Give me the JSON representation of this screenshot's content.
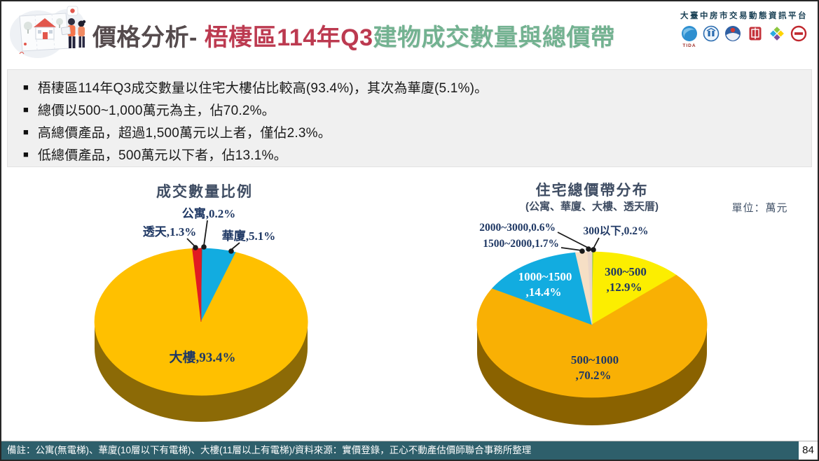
{
  "header": {
    "title_prefix": "價格分析- ",
    "title_region": "梧棲區114年Q3",
    "title_suffix": "建物成交數量與總價帶",
    "platform_name": "大臺中房市交易動態資訊平台",
    "tida_caption": "TIDA"
  },
  "bullets": [
    "梧棲區114年Q3成交數量以住宅大樓佔比較高(93.4%)，其次為華廈(5.1%)。",
    "總價以500~1,000萬元為主，佔70.2%。",
    "高總價產品，超過1,500萬元以上者，僅佔2.3%。",
    "低總價產品，500萬元以下者，佔13.1%。"
  ],
  "unit_label": "單位：萬元",
  "chart_data": [
    {
      "type": "pie",
      "title": "成交數量比例",
      "legend_position": "none",
      "style": "3d-pie",
      "start_angle_deg": 0,
      "direction": "clockwise",
      "side_color": "#8C6A06",
      "slices": [
        {
          "label": "公寓",
          "value": 0.2,
          "color": "#9C3234"
        },
        {
          "label": "華廈",
          "value": 5.1,
          "color": "#12ACE0"
        },
        {
          "label": "大樓",
          "value": 93.4,
          "color": "#FFC000"
        },
        {
          "label": "透天",
          "value": 1.3,
          "color": "#E11B22"
        }
      ]
    },
    {
      "type": "pie",
      "title": "住宅總價帶分布",
      "subtitle": "(公寓、華廈、大樓、透天厝)",
      "unit": "單位：萬元",
      "legend_position": "none",
      "style": "3d-pie",
      "start_angle_deg": 0,
      "direction": "clockwise",
      "side_color": "#8A6200",
      "slices": [
        {
          "label": "300以下",
          "value": 0.2,
          "color": "#8CC63F"
        },
        {
          "label": "300~500",
          "value": 12.9,
          "color": "#FCEE00"
        },
        {
          "label": "500~1000",
          "value": 70.2,
          "color": "#F9B004"
        },
        {
          "label": "1000~1500",
          "value": 14.4,
          "color": "#12ACE0"
        },
        {
          "label": "1500~2000",
          "value": 1.7,
          "color": "#F6DFC5"
        },
        {
          "label": "2000~3000",
          "value": 0.6,
          "color": "#EBD6C8"
        }
      ]
    }
  ],
  "footer": {
    "note": "備註：公寓(無電梯)、華廈(10層以下有電梯)、大樓(11層以上有電梯)/資料來源：實價登錄，正心不動產估價師聯合事務所整理",
    "page_number": "84"
  },
  "colors": {
    "title_prefix": "#554B4D",
    "title_region_highlight": "#BC3A50",
    "title_suffix_green": "#73B291",
    "chart_title": "#3F4D63",
    "pie_label_navy": "#1F3864",
    "footer_bar": "#2E5F6B",
    "bullet_panel_bg": "#F0F0F0"
  }
}
